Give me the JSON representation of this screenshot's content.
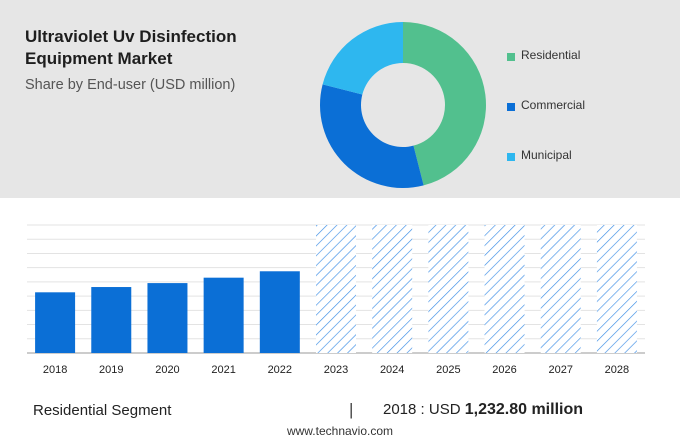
{
  "header": {
    "title": "Ultraviolet Uv Disinfection Equipment Market",
    "subtitle": "Share by End-user (USD million)"
  },
  "legend": {
    "items": [
      {
        "label": "Residential",
        "color": "#52c08e"
      },
      {
        "label": "Commercial",
        "color": "#0b6fd6"
      },
      {
        "label": "Municipal",
        "color": "#2eb7ef"
      }
    ]
  },
  "chart_data": [
    {
      "type": "pie",
      "variant": "donut",
      "categories": [
        "Residential",
        "Commercial",
        "Municipal"
      ],
      "values": [
        46,
        33,
        21
      ],
      "colors": [
        "#52c08e",
        "#0b6fd6",
        "#2eb7ef"
      ],
      "legend_position": "right"
    },
    {
      "type": "bar",
      "categories": [
        "2018",
        "2019",
        "2020",
        "2021",
        "2022",
        "2023",
        "2024",
        "2025",
        "2026",
        "2027",
        "2028"
      ],
      "values": [
        1232.8,
        1340,
        1420,
        1530,
        1660,
        null,
        null,
        null,
        null,
        null,
        null
      ],
      "forecast_categories": [
        "2023",
        "2024",
        "2025",
        "2026",
        "2027",
        "2028"
      ],
      "ylim": [
        0,
        2600
      ],
      "grid": true,
      "bar_color": "#0b6fd6",
      "forecast_color": "#3d8ee6"
    }
  ],
  "footer": {
    "segment": "Residential Segment",
    "separator": "|",
    "value_prefix": "2018 : USD",
    "value_bold": "1,232.80 million",
    "source": "www.technavio.com"
  }
}
